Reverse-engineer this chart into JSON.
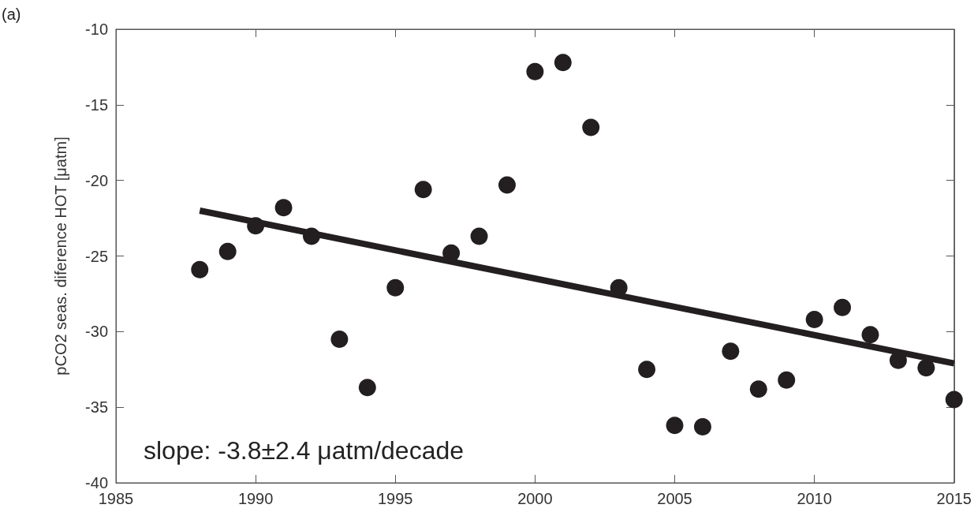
{
  "chart_data": {
    "type": "scatter",
    "ylabel": "pCO2 seas. diference HOT [μatm]",
    "annotations": [
      "(a)",
      "slope: -3.8±2.4 μatm/decade"
    ],
    "xlim": [
      1985,
      2015
    ],
    "xticks": [
      1985,
      1990,
      1995,
      2000,
      2005,
      2010,
      2015
    ],
    "ylim": [
      -40,
      -10
    ],
    "yticks": [
      -40,
      -35,
      -30,
      -25,
      -20,
      -15,
      -10
    ],
    "grid": false,
    "marker": "circle",
    "series": [
      {
        "color": "#231f20",
        "x": [
          1988,
          1989,
          1990,
          1991,
          1992,
          1993,
          1994,
          1995,
          1996,
          1997,
          1998,
          1999,
          2000,
          2001,
          2002,
          2003,
          2004,
          2005,
          2006,
          2007,
          2008,
          2009,
          2010,
          2011,
          2012,
          2013,
          2014,
          2015
        ],
        "values": [
          -25.9,
          -24.7,
          -23.0,
          -21.8,
          -23.7,
          -30.5,
          -33.7,
          -27.1,
          -20.6,
          -24.8,
          -23.7,
          -20.3,
          -12.8,
          -12.2,
          -16.5,
          -27.1,
          -32.5,
          -36.2,
          -36.3,
          -31.3,
          -33.8,
          -33.2,
          -29.2,
          -28.4,
          -30.2,
          -31.9,
          -32.4,
          -34.5
        ]
      },
      {
        "type": "line",
        "color": "#231f20",
        "line_style": "solid",
        "marker": "none",
        "x": [
          1988,
          2015
        ],
        "values": [
          -22.0,
          -32.1
        ]
      }
    ]
  }
}
